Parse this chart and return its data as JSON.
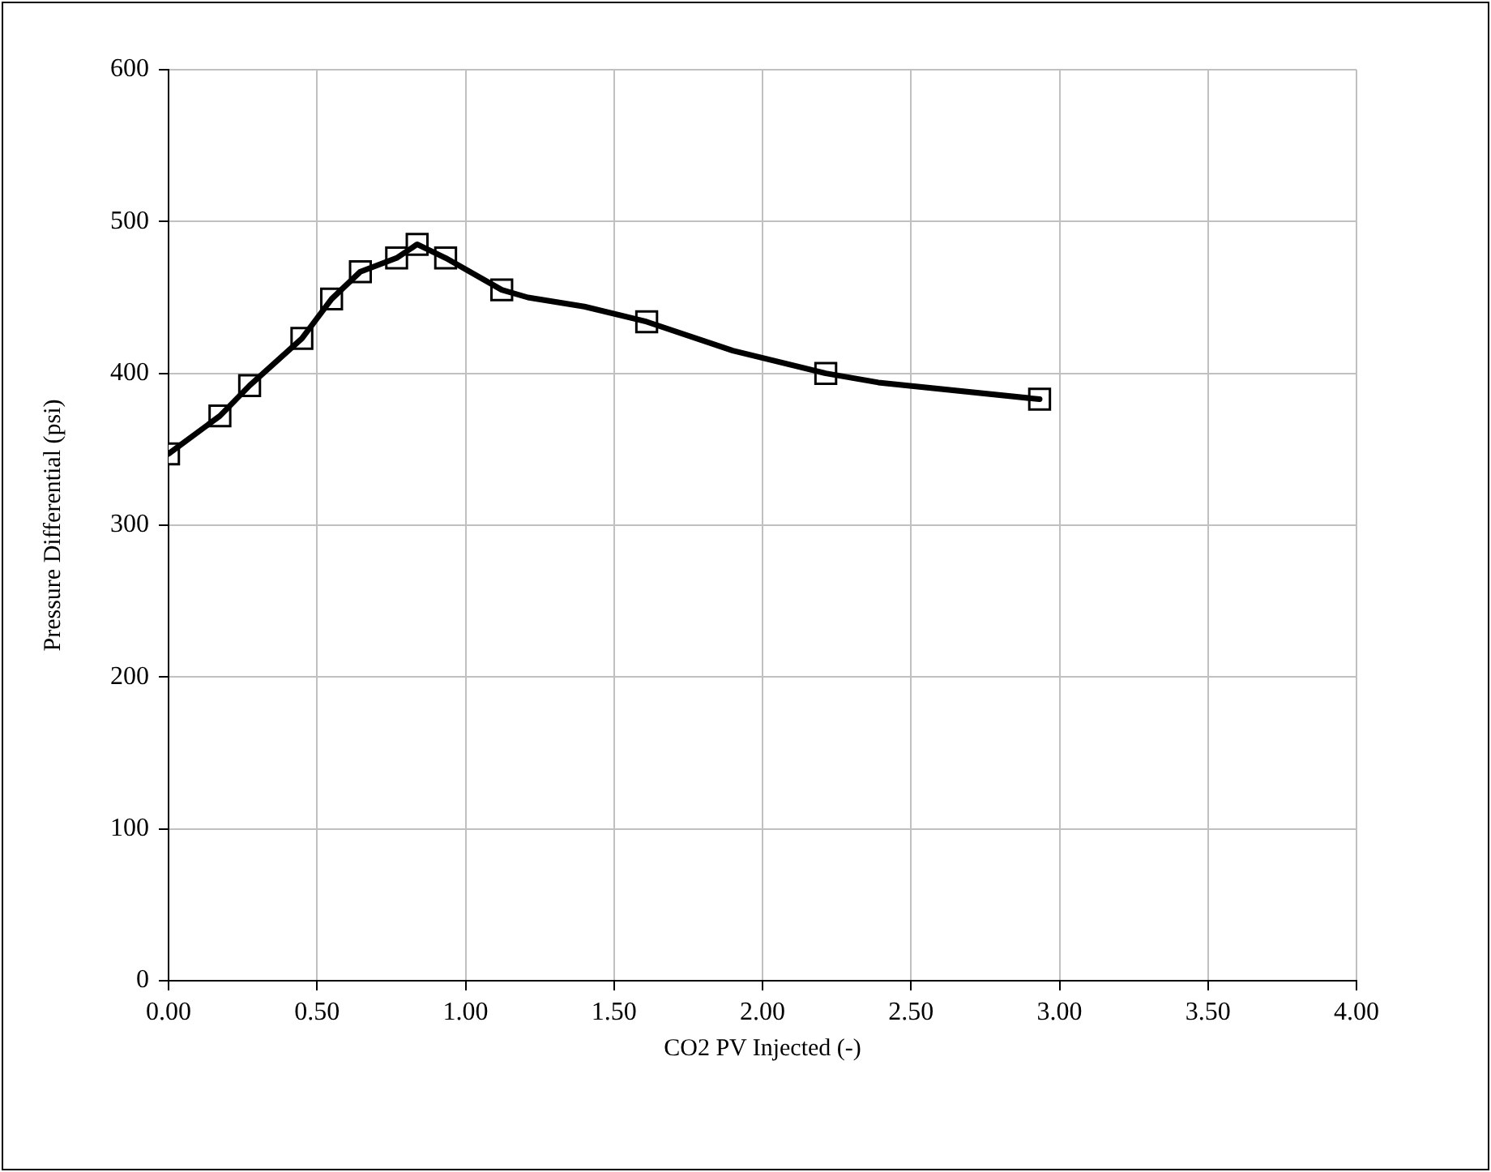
{
  "chart_data": {
    "type": "line",
    "xlabel": "CO2 PV Injected (-)",
    "ylabel": "Pressure Differential (psi)",
    "xlim": [
      0,
      4
    ],
    "xticks": [
      {
        "value": 0,
        "label": "0.00"
      },
      {
        "value": 0.5,
        "label": "0.50"
      },
      {
        "value": 1,
        "label": "1.00"
      },
      {
        "value": 1.5,
        "label": "1.50"
      },
      {
        "value": 2,
        "label": "2.00"
      },
      {
        "value": 2.5,
        "label": "2.50"
      },
      {
        "value": 3,
        "label": "3.00"
      },
      {
        "value": 3.5,
        "label": "3.50"
      },
      {
        "value": 4,
        "label": "4.00"
      }
    ],
    "ylim": [
      0,
      600
    ],
    "yticks": [
      0,
      100,
      200,
      300,
      400,
      500,
      600
    ],
    "grid": true,
    "line_style": "solid",
    "series": [
      {
        "color": "#000000",
        "marker": "none",
        "x": [
          0,
          0.173,
          0.273,
          0.449,
          0.549,
          0.646,
          0.768,
          0.837,
          0.933,
          1.122,
          1.21,
          1.4,
          1.61,
          1.9,
          2.213,
          2.39,
          2.933
        ],
        "values": [
          347,
          372,
          392,
          423,
          449,
          467,
          476,
          485,
          476,
          455,
          450,
          444,
          434,
          415,
          400,
          394,
          383
        ]
      },
      {
        "type": "scatter",
        "color": "#000000",
        "marker": "square",
        "x": [
          0,
          0.173,
          0.273,
          0.449,
          0.549,
          0.646,
          0.768,
          0.837,
          0.933,
          1.122,
          1.61,
          2.213,
          2.933
        ],
        "values": [
          347,
          372,
          392,
          423,
          449,
          467,
          476,
          485,
          476,
          455,
          434,
          400,
          383
        ]
      }
    ]
  }
}
